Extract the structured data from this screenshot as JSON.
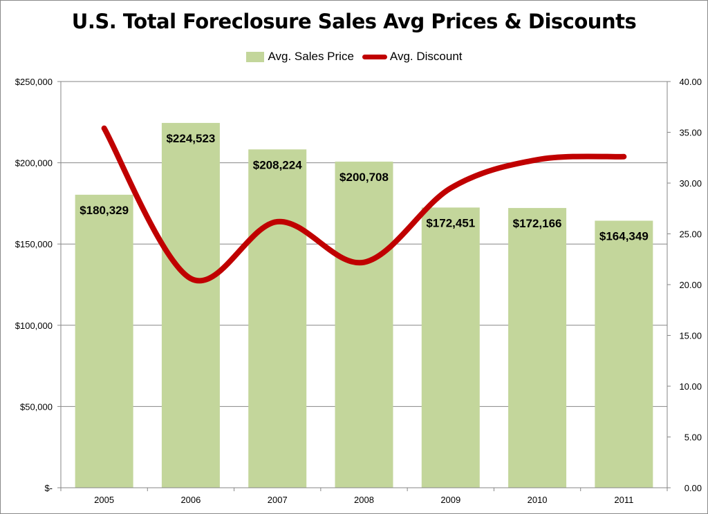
{
  "chart_data": {
    "type": "bar",
    "title": "U.S. Total Foreclosure Sales Avg Prices & Discounts",
    "categories": [
      "2005",
      "2006",
      "2007",
      "2008",
      "2009",
      "2010",
      "2011"
    ],
    "series": [
      {
        "name": "Avg. Sales Price",
        "type": "bar",
        "axis": "left",
        "color": "#c3d69b",
        "values": [
          180329,
          224523,
          208224,
          200708,
          172451,
          172166,
          164349
        ],
        "labels": [
          "$180,329",
          "$224,523",
          "$208,224",
          "$200,708",
          "$172,451",
          "$172,166",
          "$164,349"
        ]
      },
      {
        "name": "Avg. Discount",
        "type": "line",
        "axis": "right",
        "color": "#c00000",
        "smooth": true,
        "values": [
          35.4,
          20.6,
          26.2,
          22.2,
          29.5,
          32.3,
          32.6
        ]
      }
    ],
    "y_left": {
      "ylim": [
        0,
        250000
      ],
      "ticks": [
        0,
        50000,
        100000,
        150000,
        200000,
        250000
      ],
      "tick_labels": [
        "$-",
        "$50,000",
        "$100,000",
        "$150,000",
        "$200,000",
        "$250,000"
      ]
    },
    "y_right": {
      "ylim": [
        0,
        40
      ],
      "ticks": [
        0,
        5,
        10,
        15,
        20,
        25,
        30,
        35,
        40
      ],
      "tick_labels": [
        "0.00",
        "5.00",
        "10.00",
        "15.00",
        "20.00",
        "25.00",
        "30.00",
        "35.00",
        "40.00"
      ]
    },
    "grid": true,
    "legend": "top"
  }
}
